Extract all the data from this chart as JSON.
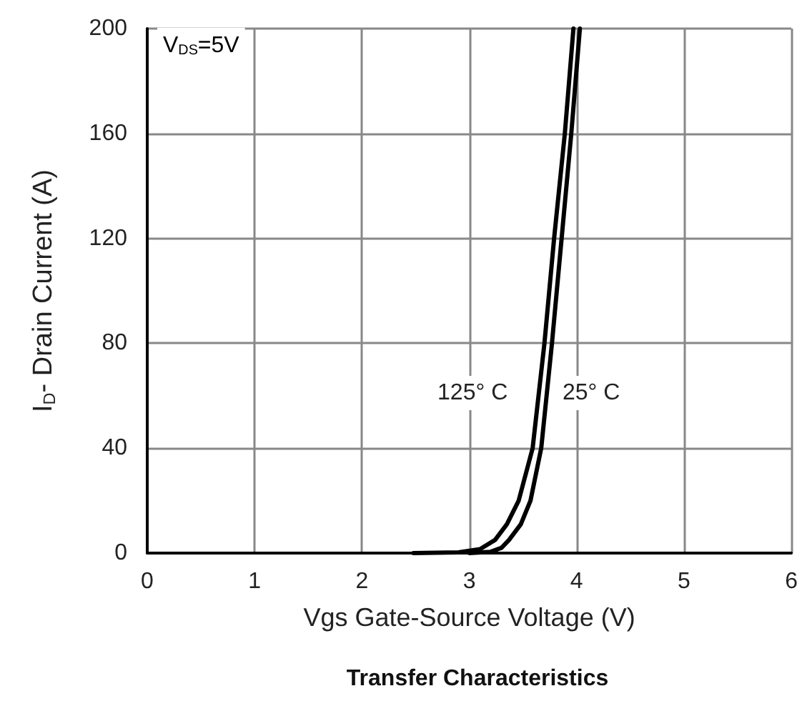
{
  "chart_data": {
    "type": "line",
    "title": "Transfer Characteristics",
    "xlabel": "Vgs Gate-Source Voltage (V)",
    "ylabel": "I$_{D}$- Drain Current (A)",
    "xlim": [
      0,
      6
    ],
    "xticks": [
      0,
      1,
      2,
      3,
      4,
      5,
      6
    ],
    "ylim": [
      0,
      200
    ],
    "yticks": [
      0,
      40,
      80,
      120,
      160,
      200
    ],
    "grid": true,
    "marker": "none",
    "line_style": "solid",
    "series": [
      {
        "name": "125° C",
        "color": "#000000",
        "x": [
          2.48,
          2.9,
          3.1,
          3.24,
          3.35,
          3.46,
          3.59,
          3.7,
          3.79,
          3.89,
          3.97
        ],
        "values": [
          0,
          0.3,
          1.5,
          5,
          11,
          20,
          40,
          80,
          120,
          160,
          200
        ]
      },
      {
        "name": "25° C",
        "color": "#000000",
        "x": [
          3.0,
          3.2,
          3.3,
          3.37,
          3.48,
          3.57,
          3.67,
          3.77,
          3.86,
          3.95,
          4.03
        ],
        "values": [
          0,
          0.5,
          2,
          5,
          11,
          20,
          40,
          80,
          120,
          160,
          200
        ]
      }
    ],
    "annotations": [
      "V$_{DS}$=5V"
    ]
  }
}
